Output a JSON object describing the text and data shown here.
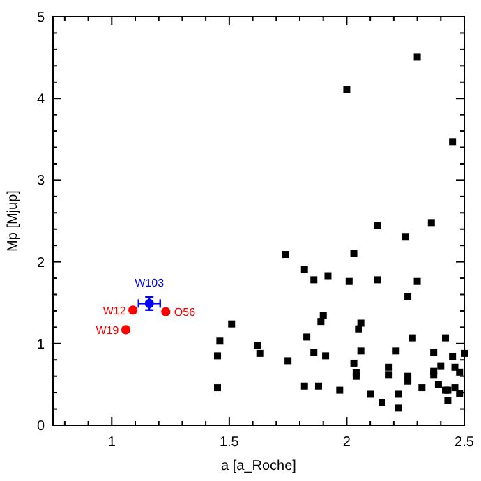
{
  "chart_data": {
    "type": "scatter",
    "xlabel": "a [a_Roche]",
    "ylabel": "Mp [Mjup]",
    "xlim": [
      0.75,
      2.5
    ],
    "ylim": [
      0,
      5
    ],
    "xticks": [
      {
        "value": 0.8,
        "label": null
      },
      {
        "value": 0.9,
        "label": null
      },
      1,
      {
        "value": 1.1,
        "label": null
      },
      {
        "value": 1.2,
        "label": null
      },
      {
        "value": 1.3,
        "label": null
      },
      {
        "value": 1.4,
        "label": null
      },
      1.5,
      {
        "value": 1.6,
        "label": null
      },
      {
        "value": 1.7,
        "label": null
      },
      {
        "value": 1.8,
        "label": null
      },
      {
        "value": 1.9,
        "label": null
      },
      2,
      {
        "value": 2.1,
        "label": null
      },
      {
        "value": 2.2,
        "label": null
      },
      {
        "value": 2.3,
        "label": null
      },
      {
        "value": 2.4,
        "label": null
      },
      2.5
    ],
    "yticks": [
      0,
      {
        "value": 0.2,
        "label": null
      },
      {
        "value": 0.4,
        "label": null
      },
      {
        "value": 0.6,
        "label": null
      },
      {
        "value": 0.8,
        "label": null
      },
      1,
      {
        "value": 1.2,
        "label": null
      },
      {
        "value": 1.4,
        "label": null
      },
      {
        "value": 1.6,
        "label": null
      },
      {
        "value": 1.8,
        "label": null
      },
      2,
      {
        "value": 2.2,
        "label": null
      },
      {
        "value": 2.4,
        "label": null
      },
      {
        "value": 2.6,
        "label": null
      },
      {
        "value": 2.8,
        "label": null
      },
      3,
      {
        "value": 3.2,
        "label": null
      },
      {
        "value": 3.4,
        "label": null
      },
      {
        "value": 3.6,
        "label": null
      },
      {
        "value": 3.8,
        "label": null
      },
      4,
      {
        "value": 4.2,
        "label": null
      },
      {
        "value": 4.4,
        "label": null
      },
      {
        "value": 4.6,
        "label": null
      },
      {
        "value": 4.8,
        "label": null
      },
      5
    ],
    "grid": false,
    "series": [
      {
        "color": "#000000",
        "marker": "square",
        "x": [
          2.13,
          2.36,
          2.25,
          1.74,
          2.03,
          1.82,
          1.86,
          1.92,
          2.01,
          2.13,
          2.3,
          2.26,
          1.51,
          1.9,
          1.89,
          2.06,
          2.05,
          1.83,
          1.62,
          1.63,
          2.28,
          2.42,
          1.86,
          1.91,
          2.06,
          2.21,
          2.37,
          2.45,
          2.5,
          1.75,
          2.03,
          2.18,
          2.04,
          2.04,
          2.18,
          2.26,
          2.26,
          2.37,
          2.37,
          2.4,
          2.46,
          2.48,
          1.82,
          1.88,
          1.97,
          2.1,
          2.22,
          2.32,
          2.39,
          2.42,
          2.43,
          2.46,
          2.48,
          2.43,
          2.15,
          2.22,
          2.3,
          2.0,
          2.45,
          1.46,
          1.45,
          1.45
        ],
        "values": [
          2.44,
          2.48,
          2.31,
          2.09,
          2.1,
          1.91,
          1.78,
          1.83,
          1.76,
          1.78,
          1.76,
          1.57,
          1.24,
          1.34,
          1.27,
          1.25,
          1.18,
          1.08,
          0.98,
          0.88,
          1.07,
          1.07,
          0.89,
          0.85,
          0.91,
          0.91,
          0.89,
          0.84,
          0.88,
          0.79,
          0.76,
          0.71,
          0.64,
          0.6,
          0.62,
          0.6,
          0.54,
          0.66,
          0.62,
          0.72,
          0.71,
          0.65,
          0.48,
          0.48,
          0.43,
          0.38,
          0.38,
          0.46,
          0.5,
          0.43,
          0.43,
          0.46,
          0.39,
          0.3,
          0.28,
          0.21,
          4.51,
          4.11,
          3.47,
          1.03,
          0.85,
          0.46
        ]
      },
      {
        "color": "#ff0000",
        "marker": "circle",
        "x": [
          1.09,
          1.23,
          1.06
        ],
        "values": [
          1.41,
          1.39,
          1.17
        ]
      },
      {
        "color": "#0000ff",
        "marker": "circle",
        "x": [
          1.16
        ],
        "values": [
          1.49
        ],
        "errors": [
          0.08
        ],
        "xerrors": [
          0.046
        ]
      }
    ],
    "annotations": [
      {
        "text": "W12",
        "x": 1.09,
        "y": 1.41
      },
      {
        "text": "O56",
        "x": 1.23,
        "y": 1.39
      },
      {
        "text": "W19",
        "x": 1.06,
        "y": 1.17
      },
      {
        "text": "W103",
        "x": 1.16,
        "y": 1.49
      }
    ]
  }
}
